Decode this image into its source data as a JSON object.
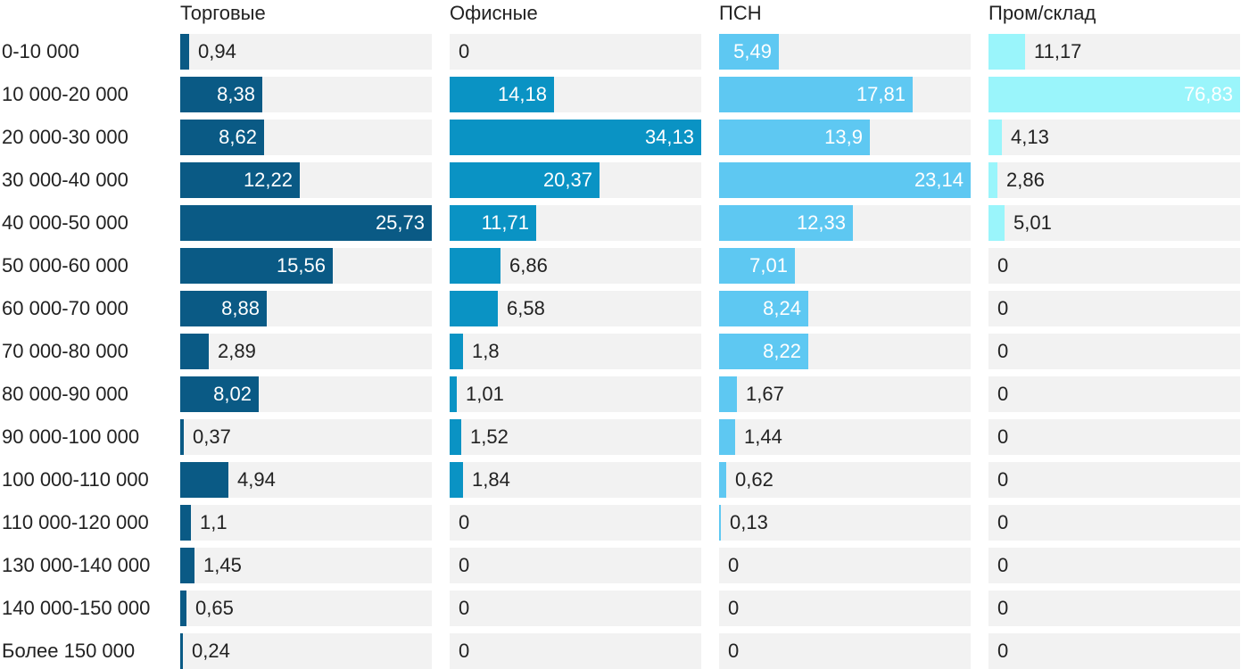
{
  "chart_data": {
    "type": "bar",
    "orientation": "horizontal",
    "layout": "small-multiples",
    "categories": [
      "0-10 000",
      "10 000-20 000",
      "20 000-30 000",
      "30 000-40 000",
      "40 000-50 000",
      "50 000-60 000",
      "60 000-70 000",
      "70 000-80 000",
      "80 000-90 000",
      "90 000-100 000",
      "100 000-110 000",
      "110 000-120 000",
      "130 000-140 000",
      "140 000-150 000",
      "Более 150 000"
    ],
    "series": [
      {
        "name": "Торговые",
        "color": "#0a5a85",
        "xlim": [
          0,
          25.73
        ],
        "values": [
          0.94,
          8.38,
          8.62,
          12.22,
          25.73,
          15.56,
          8.88,
          2.89,
          8.02,
          0.37,
          4.94,
          1.1,
          1.45,
          0.65,
          0.24
        ],
        "labels": [
          "0,94",
          "8,38",
          "8,62",
          "12,22",
          "25,73",
          "15,56",
          "8,88",
          "2,89",
          "8,02",
          "0,37",
          "4,94",
          "1,1",
          "1,45",
          "0,65",
          "0,24"
        ]
      },
      {
        "name": "Офисные",
        "color": "#0a93c4",
        "xlim": [
          0,
          34.13
        ],
        "values": [
          0,
          14.18,
          34.13,
          20.37,
          11.71,
          6.86,
          6.58,
          1.8,
          1.01,
          1.52,
          1.84,
          0,
          0,
          0,
          0
        ],
        "labels": [
          "0",
          "14,18",
          "34,13",
          "20,37",
          "11,71",
          "6,86",
          "6,58",
          "1,8",
          "1,01",
          "1,52",
          "1,84",
          "0",
          "0",
          "0",
          "0"
        ]
      },
      {
        "name": "ПСН",
        "color": "#5ec8f2",
        "xlim": [
          0,
          23.14
        ],
        "values": [
          5.49,
          17.81,
          13.9,
          23.14,
          12.33,
          7.01,
          8.24,
          8.22,
          1.67,
          1.44,
          0.62,
          0.13,
          0,
          0,
          0
        ],
        "labels": [
          "5,49",
          "17,81",
          "13,9",
          "23,14",
          "12,33",
          "7,01",
          "8,24",
          "8,22",
          "1,67",
          "1,44",
          "0,62",
          "0,13",
          "0",
          "0",
          "0"
        ]
      },
      {
        "name": "Пром/склад",
        "color": "#9af5fb",
        "xlim": [
          0,
          76.83
        ],
        "values": [
          11.17,
          76.83,
          4.13,
          2.86,
          5.01,
          0,
          0,
          0,
          0,
          0,
          0,
          0,
          0,
          0,
          0
        ],
        "labels": [
          "11,17",
          "76,83",
          "4,13",
          "2,86",
          "5,01",
          "0",
          "0",
          "0",
          "0",
          "0",
          "0",
          "0",
          "0",
          "0",
          "0"
        ]
      }
    ]
  }
}
